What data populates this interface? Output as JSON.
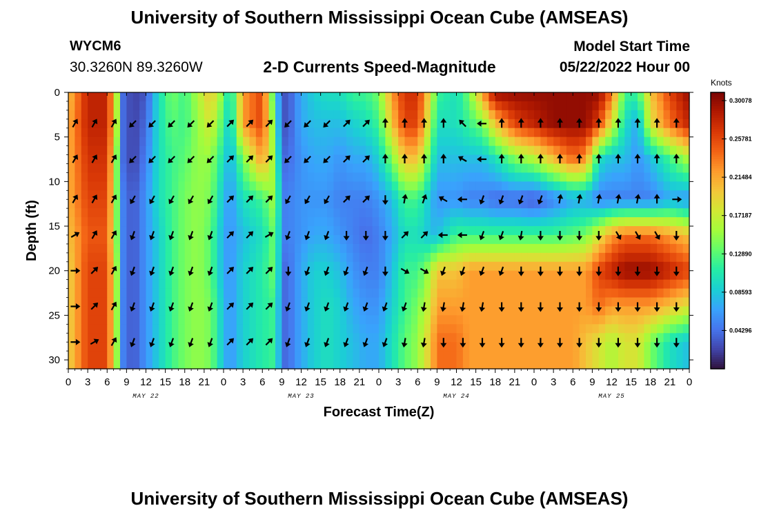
{
  "header": {
    "title": "University of Southern Mississippi Ocean Cube (AMSEAS)",
    "station_id": "WYCM6",
    "station_coords": "30.3260N  89.3260W",
    "subtitle": "2-D Currents Speed-Magnitude",
    "model_start_label": "Model Start Time",
    "model_start_value": "05/22/2022 Hour 00"
  },
  "footer": {
    "title": "University of Southern Mississippi Ocean Cube (AMSEAS)"
  },
  "chart_data": {
    "type": "heatmap",
    "title": "2-D Currents Speed-Magnitude",
    "xlabel": "Forecast Time(Z)",
    "ylabel": "Depth (ft)",
    "x_tick_labels": [
      "0",
      "3",
      "6",
      "9",
      "12",
      "15",
      "18",
      "21",
      "0",
      "3",
      "6",
      "9",
      "12",
      "15",
      "18",
      "21",
      "0",
      "3",
      "6",
      "9",
      "12",
      "15",
      "18",
      "21",
      "0",
      "3",
      "6",
      "9",
      "12",
      "15",
      "18",
      "21",
      "0"
    ],
    "x_range_hours": [
      0,
      96
    ],
    "day_labels": [
      {
        "label": "MAY 22",
        "hour": 12
      },
      {
        "label": "MAY 23",
        "hour": 36
      },
      {
        "label": "MAY 24",
        "hour": 60
      },
      {
        "label": "MAY 25",
        "hour": 84
      }
    ],
    "y_ticks": [
      0,
      5,
      10,
      15,
      20,
      25,
      30
    ],
    "ylim": [
      0,
      31
    ],
    "colorbar": {
      "unit": "Knots",
      "ticks": [
        "0.30078",
        "0.25781",
        "0.21484",
        "0.17187",
        "0.12890",
        "0.08593",
        "0.04296"
      ],
      "range": [
        0.0,
        0.31
      ],
      "colors": [
        "#30123b",
        "#4145ab",
        "#4675ed",
        "#39a2fc",
        "#1bcfd4",
        "#24eca6",
        "#61fc6c",
        "#a4fc3b",
        "#d1e834",
        "#f3c63a",
        "#fe9b2d",
        "#f36315",
        "#d93806",
        "#b11901",
        "#7a0403"
      ]
    },
    "depths_ft": [
      0,
      3.5,
      7.5,
      12,
      16,
      20,
      24,
      28,
      31
    ],
    "times_h": [
      0,
      3,
      6,
      7.5,
      8.5,
      10,
      12,
      14,
      16,
      18,
      20,
      22,
      24,
      25,
      27,
      30,
      32,
      33,
      34,
      36,
      38,
      40,
      42,
      44,
      46,
      48,
      50,
      52,
      54,
      56,
      57,
      60,
      62,
      64,
      66,
      69,
      72,
      75,
      78,
      80,
      82,
      84,
      86,
      88,
      90,
      93,
      96
    ],
    "speed_knots": [
      [
        0.2,
        0.28,
        0.28,
        0.16,
        0.04,
        0.02,
        0.03,
        0.1,
        0.14,
        0.12,
        0.16,
        0.2,
        0.14,
        0.09,
        0.22,
        0.26,
        0.1,
        0.03,
        0.03,
        0.07,
        0.09,
        0.1,
        0.1,
        0.12,
        0.12,
        0.14,
        0.22,
        0.27,
        0.27,
        0.18,
        0.12,
        0.1,
        0.14,
        0.22,
        0.3,
        0.3,
        0.3,
        0.3,
        0.3,
        0.3,
        0.3,
        0.24,
        0.12,
        0.12,
        0.2,
        0.26,
        0.3
      ],
      [
        0.21,
        0.28,
        0.28,
        0.16,
        0.04,
        0.02,
        0.04,
        0.1,
        0.13,
        0.12,
        0.15,
        0.18,
        0.12,
        0.08,
        0.22,
        0.26,
        0.12,
        0.03,
        0.03,
        0.07,
        0.08,
        0.08,
        0.08,
        0.09,
        0.1,
        0.12,
        0.2,
        0.26,
        0.26,
        0.16,
        0.1,
        0.1,
        0.12,
        0.14,
        0.2,
        0.26,
        0.28,
        0.3,
        0.3,
        0.3,
        0.26,
        0.18,
        0.1,
        0.07,
        0.18,
        0.24,
        0.28
      ],
      [
        0.21,
        0.27,
        0.27,
        0.14,
        0.04,
        0.02,
        0.05,
        0.1,
        0.12,
        0.13,
        0.15,
        0.15,
        0.1,
        0.07,
        0.14,
        0.22,
        0.14,
        0.04,
        0.04,
        0.06,
        0.07,
        0.07,
        0.06,
        0.07,
        0.07,
        0.09,
        0.14,
        0.2,
        0.2,
        0.12,
        0.08,
        0.08,
        0.08,
        0.08,
        0.1,
        0.14,
        0.16,
        0.2,
        0.24,
        0.22,
        0.1,
        0.08,
        0.08,
        0.06,
        0.08,
        0.12,
        0.16
      ],
      [
        0.21,
        0.26,
        0.26,
        0.14,
        0.05,
        0.03,
        0.06,
        0.1,
        0.12,
        0.14,
        0.15,
        0.14,
        0.08,
        0.06,
        0.1,
        0.12,
        0.16,
        0.05,
        0.05,
        0.06,
        0.06,
        0.06,
        0.05,
        0.05,
        0.05,
        0.06,
        0.08,
        0.12,
        0.12,
        0.08,
        0.06,
        0.06,
        0.05,
        0.05,
        0.04,
        0.04,
        0.03,
        0.05,
        0.07,
        0.07,
        0.05,
        0.05,
        0.05,
        0.05,
        0.05,
        0.07,
        0.06
      ],
      [
        0.2,
        0.25,
        0.25,
        0.14,
        0.05,
        0.03,
        0.06,
        0.09,
        0.12,
        0.14,
        0.15,
        0.13,
        0.07,
        0.06,
        0.08,
        0.1,
        0.14,
        0.05,
        0.05,
        0.06,
        0.07,
        0.07,
        0.06,
        0.05,
        0.04,
        0.05,
        0.07,
        0.1,
        0.1,
        0.08,
        0.08,
        0.12,
        0.12,
        0.12,
        0.12,
        0.12,
        0.12,
        0.12,
        0.13,
        0.14,
        0.18,
        0.22,
        0.24,
        0.24,
        0.24,
        0.22,
        0.2
      ],
      [
        0.19,
        0.26,
        0.26,
        0.15,
        0.05,
        0.03,
        0.06,
        0.09,
        0.12,
        0.14,
        0.15,
        0.13,
        0.07,
        0.06,
        0.09,
        0.11,
        0.14,
        0.04,
        0.04,
        0.07,
        0.09,
        0.09,
        0.08,
        0.06,
        0.05,
        0.05,
        0.08,
        0.12,
        0.12,
        0.16,
        0.2,
        0.2,
        0.22,
        0.22,
        0.22,
        0.22,
        0.22,
        0.22,
        0.22,
        0.22,
        0.26,
        0.28,
        0.3,
        0.3,
        0.3,
        0.28,
        0.26
      ],
      [
        0.19,
        0.26,
        0.26,
        0.15,
        0.05,
        0.03,
        0.06,
        0.09,
        0.12,
        0.14,
        0.15,
        0.14,
        0.08,
        0.06,
        0.09,
        0.11,
        0.12,
        0.04,
        0.04,
        0.07,
        0.09,
        0.1,
        0.09,
        0.07,
        0.06,
        0.06,
        0.09,
        0.12,
        0.14,
        0.18,
        0.22,
        0.22,
        0.22,
        0.22,
        0.22,
        0.22,
        0.22,
        0.22,
        0.22,
        0.22,
        0.24,
        0.22,
        0.22,
        0.22,
        0.22,
        0.2,
        0.18
      ],
      [
        0.19,
        0.26,
        0.26,
        0.15,
        0.05,
        0.03,
        0.06,
        0.09,
        0.12,
        0.14,
        0.15,
        0.14,
        0.08,
        0.06,
        0.09,
        0.11,
        0.12,
        0.04,
        0.04,
        0.07,
        0.09,
        0.1,
        0.09,
        0.08,
        0.07,
        0.07,
        0.1,
        0.13,
        0.15,
        0.2,
        0.24,
        0.24,
        0.22,
        0.22,
        0.22,
        0.22,
        0.22,
        0.22,
        0.22,
        0.2,
        0.18,
        0.16,
        0.18,
        0.18,
        0.14,
        0.1,
        0.08
      ],
      [
        0.19,
        0.26,
        0.26,
        0.15,
        0.05,
        0.03,
        0.06,
        0.09,
        0.12,
        0.14,
        0.15,
        0.14,
        0.08,
        0.06,
        0.09,
        0.11,
        0.12,
        0.04,
        0.04,
        0.07,
        0.09,
        0.1,
        0.09,
        0.08,
        0.07,
        0.07,
        0.1,
        0.13,
        0.15,
        0.2,
        0.24,
        0.24,
        0.22,
        0.22,
        0.22,
        0.22,
        0.22,
        0.22,
        0.22,
        0.2,
        0.18,
        0.16,
        0.18,
        0.18,
        0.14,
        0.1,
        0.08
      ]
    ],
    "arrow_times_h": [
      1,
      4,
      7,
      10,
      13,
      16,
      19,
      22,
      25,
      28,
      31,
      34,
      37,
      40,
      43,
      46,
      49,
      52,
      55,
      58,
      61,
      64,
      67,
      70,
      73,
      76,
      79,
      82,
      85,
      88,
      91,
      94
    ],
    "arrow_depths_ft": [
      3.5,
      7.5,
      12,
      16,
      20,
      24,
      28
    ],
    "arrow_directions_deg": [
      [
        30,
        30,
        30,
        225,
        225,
        225,
        225,
        225,
        45,
        45,
        45,
        225,
        225,
        225,
        45,
        45,
        0,
        0,
        0,
        0,
        315,
        270,
        0,
        0,
        0,
        0,
        0,
        0,
        0,
        0,
        0,
        0
      ],
      [
        30,
        30,
        30,
        225,
        225,
        225,
        225,
        225,
        45,
        45,
        45,
        225,
        225,
        225,
        45,
        45,
        0,
        0,
        0,
        0,
        300,
        270,
        0,
        0,
        0,
        0,
        0,
        0,
        0,
        0,
        0,
        0
      ],
      [
        30,
        30,
        30,
        210,
        210,
        210,
        210,
        210,
        45,
        45,
        45,
        210,
        210,
        210,
        45,
        45,
        180,
        10,
        20,
        300,
        270,
        200,
        200,
        200,
        200,
        10,
        10,
        10,
        10,
        10,
        0,
        90
      ],
      [
        60,
        30,
        30,
        200,
        200,
        200,
        200,
        200,
        45,
        45,
        60,
        200,
        200,
        200,
        180,
        180,
        180,
        45,
        45,
        270,
        270,
        200,
        200,
        190,
        180,
        180,
        180,
        180,
        150,
        150,
        150,
        180
      ],
      [
        90,
        45,
        30,
        200,
        200,
        200,
        200,
        200,
        45,
        45,
        45,
        180,
        200,
        200,
        200,
        200,
        180,
        120,
        120,
        200,
        200,
        200,
        200,
        180,
        180,
        180,
        180,
        180,
        180,
        180,
        180,
        180
      ],
      [
        90,
        45,
        30,
        200,
        200,
        200,
        200,
        200,
        45,
        45,
        45,
        200,
        200,
        200,
        200,
        200,
        200,
        200,
        190,
        190,
        190,
        190,
        180,
        180,
        180,
        180,
        180,
        180,
        180,
        180,
        180,
        180
      ],
      [
        90,
        60,
        30,
        200,
        200,
        200,
        200,
        200,
        45,
        45,
        45,
        200,
        200,
        200,
        200,
        200,
        200,
        190,
        190,
        180,
        180,
        180,
        180,
        180,
        180,
        180,
        180,
        180,
        180,
        180,
        180,
        180
      ]
    ]
  }
}
